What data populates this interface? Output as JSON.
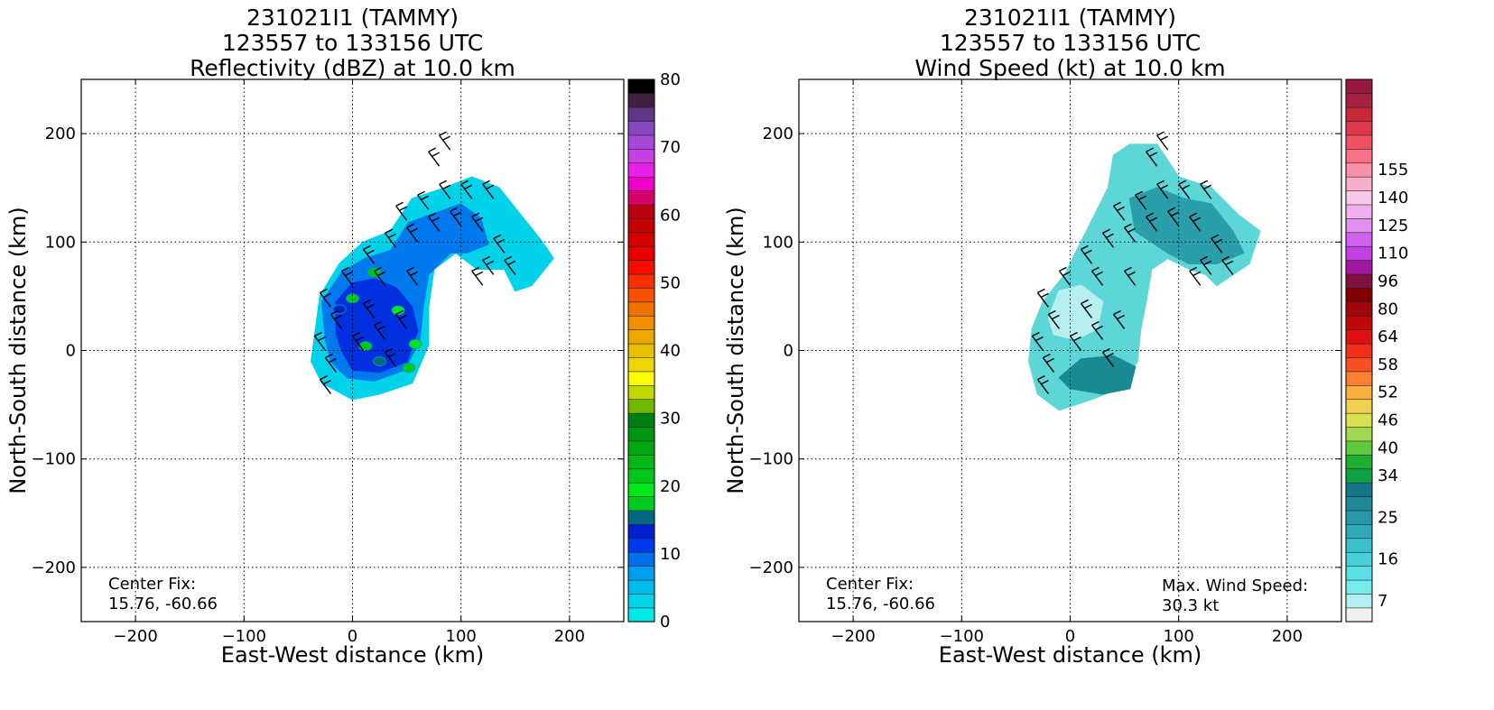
{
  "panels": [
    {
      "title_lines": [
        "231021I1 (TAMMY)",
        "123557 to 133156 UTC",
        "Reflectivity (dBZ) at 10.0 km"
      ],
      "xlabel": "East-West distance (km)",
      "ylabel": "North-South distance (km)",
      "annotation_left": [
        "Center Fix:",
        "15.76, -60.66"
      ],
      "annotation_right": []
    },
    {
      "title_lines": [
        "231021I1 (TAMMY)",
        "123557 to 133156 UTC",
        "Wind Speed (kt) at 10.0 km"
      ],
      "xlabel": "East-West distance (km)",
      "ylabel": "North-South distance (km)",
      "annotation_left": [
        "Center Fix:",
        "15.76, -60.66"
      ],
      "annotation_right": [
        "Max. Wind Speed:",
        "30.3 kt"
      ]
    }
  ],
  "chart_data": [
    {
      "type": "heatmap",
      "title": "231021I1 (TAMMY) 123557 to 133156 UTC Reflectivity (dBZ) at 10.0 km",
      "xlabel": "East-West distance (km)",
      "ylabel": "North-South distance (km)",
      "xlim": [
        -250,
        250
      ],
      "ylim": [
        -250,
        250
      ],
      "xticks": [
        -200,
        -100,
        0,
        100,
        200
      ],
      "yticks": [
        -200,
        -100,
        0,
        100,
        200
      ],
      "grid": true,
      "center_fix": "15.76, -60.66",
      "colorbar": {
        "label": "Reflectivity (dBZ)",
        "min": 0,
        "max": 80,
        "step": 2.5,
        "tick_labels": [
          "0",
          "10",
          "20",
          "30",
          "40",
          "50",
          "60",
          "70",
          "80"
        ],
        "colors": [
          "#00e8e8",
          "#00d4e6",
          "#00bcec",
          "#009ef0",
          "#0070ee",
          "#0038f0",
          "#0020d0",
          "#006a80",
          "#00cc20",
          "#00e81c",
          "#00c81a",
          "#00b816",
          "#00a814",
          "#009612",
          "#008010",
          "#70b800",
          "#c0d800",
          "#fcfc00",
          "#ecd800",
          "#e8c000",
          "#eca800",
          "#f09000",
          "#f07000",
          "#f85200",
          "#f83000",
          "#f80c00",
          "#e80000",
          "#d40000",
          "#c40000",
          "#b80010",
          "#d8006c",
          "#f000c8",
          "#e820e8",
          "#c840e4",
          "#a848d8",
          "#8848c0",
          "#603888",
          "#402040",
          "#000000"
        ]
      },
      "echo_regions": [
        {
          "level": "light",
          "color": "#00d2ea",
          "points": [
            [
              -38,
              -10
            ],
            [
              -30,
              50
            ],
            [
              -12,
              80
            ],
            [
              10,
              100
            ],
            [
              35,
              110
            ],
            [
              55,
              140
            ],
            [
              85,
              150
            ],
            [
              110,
              160
            ],
            [
              135,
              150
            ],
            [
              155,
              125
            ],
            [
              175,
              100
            ],
            [
              185,
              85
            ],
            [
              165,
              60
            ],
            [
              150,
              55
            ],
            [
              140,
              75
            ],
            [
              115,
              75
            ],
            [
              95,
              90
            ],
            [
              75,
              75
            ],
            [
              70,
              40
            ],
            [
              70,
              5
            ],
            [
              55,
              -30
            ],
            [
              25,
              -40
            ],
            [
              0,
              -45
            ],
            [
              -28,
              -30
            ]
          ]
        },
        {
          "level": "moderate",
          "color": "#0078ee",
          "points": [
            [
              -25,
              10
            ],
            [
              -28,
              45
            ],
            [
              -10,
              72
            ],
            [
              12,
              85
            ],
            [
              35,
              92
            ],
            [
              52,
              118
            ],
            [
              80,
              128
            ],
            [
              100,
              135
            ],
            [
              118,
              122
            ],
            [
              125,
              98
            ],
            [
              105,
              90
            ],
            [
              90,
              90
            ],
            [
              70,
              70
            ],
            [
              65,
              40
            ],
            [
              62,
              10
            ],
            [
              48,
              -18
            ],
            [
              20,
              -28
            ],
            [
              -5,
              -25
            ],
            [
              -20,
              -10
            ]
          ]
        },
        {
          "level": "strong",
          "color": "#0030e0",
          "points": [
            [
              -15,
              15
            ],
            [
              -15,
              45
            ],
            [
              0,
              62
            ],
            [
              20,
              66
            ],
            [
              40,
              58
            ],
            [
              55,
              40
            ],
            [
              60,
              18
            ],
            [
              50,
              -10
            ],
            [
              25,
              -20
            ],
            [
              0,
              -18
            ],
            [
              -10,
              0
            ]
          ]
        }
      ],
      "cores": [
        {
          "x": 0,
          "y": 48,
          "dbz": 25
        },
        {
          "x": 20,
          "y": 72,
          "dbz": 27
        },
        {
          "x": 42,
          "y": 37,
          "dbz": 23
        },
        {
          "x": 58,
          "y": 6,
          "dbz": 24
        },
        {
          "x": 12,
          "y": 4,
          "dbz": 26
        },
        {
          "x": 52,
          "y": -16,
          "dbz": 22
        },
        {
          "x": -12,
          "y": 38,
          "dbz": 17
        },
        {
          "x": 25,
          "y": -10,
          "dbz": 18
        }
      ],
      "wind_barbs_km": [
        [
          -20,
          -40
        ],
        [
          -15,
          -20
        ],
        [
          -25,
          0
        ],
        [
          -10,
          20
        ],
        [
          -20,
          40
        ],
        [
          0,
          60
        ],
        [
          20,
          80
        ],
        [
          40,
          95
        ],
        [
          50,
          120
        ],
        [
          70,
          130
        ],
        [
          90,
          140
        ],
        [
          110,
          140
        ],
        [
          130,
          140
        ],
        [
          60,
          100
        ],
        [
          80,
          110
        ],
        [
          100,
          115
        ],
        [
          120,
          110
        ],
        [
          140,
          90
        ],
        [
          130,
          70
        ],
        [
          150,
          70
        ],
        [
          120,
          60
        ],
        [
          10,
          0
        ],
        [
          30,
          10
        ],
        [
          50,
          20
        ],
        [
          40,
          -15
        ],
        [
          20,
          30
        ],
        [
          60,
          60
        ],
        [
          30,
          60
        ],
        [
          80,
          170
        ],
        [
          90,
          185
        ]
      ]
    },
    {
      "type": "heatmap",
      "title": "231021I1 (TAMMY) 123557 to 133156 UTC Wind Speed (kt) at 10.0 km",
      "xlabel": "East-West distance (km)",
      "ylabel": "North-South distance (km)",
      "xlim": [
        -250,
        250
      ],
      "ylim": [
        -250,
        250
      ],
      "xticks": [
        -200,
        -100,
        0,
        100,
        200
      ],
      "yticks": [
        -200,
        -100,
        0,
        100,
        200
      ],
      "grid": true,
      "center_fix": "15.76, -60.66",
      "max_wind_speed_kt": 30.3,
      "colorbar": {
        "label": "Wind Speed (kt)",
        "tick_labels": [
          "7",
          "16",
          "25",
          "34",
          "40",
          "46",
          "52",
          "58",
          "64",
          "80",
          "96",
          "110",
          "125",
          "140",
          "155"
        ],
        "boundaries": [
          4,
          7,
          10,
          13,
          16,
          19,
          22,
          25,
          28,
          31,
          34,
          37,
          40,
          43,
          46,
          49,
          52,
          55,
          58,
          61,
          64,
          72,
          80,
          88,
          96,
          103,
          110,
          118,
          125,
          133,
          140,
          148,
          155,
          163
        ],
        "colors": [
          "#f0f0f0",
          "#b0f0f0",
          "#78ecec",
          "#58e0e4",
          "#48d0d8",
          "#38c0cc",
          "#30aab8",
          "#2898a8",
          "#1e8898",
          "#127888",
          "#10a048",
          "#20b030",
          "#60c840",
          "#a0d850",
          "#d8e050",
          "#f0d050",
          "#f8b040",
          "#f88030",
          "#f85020",
          "#f03018",
          "#e01010",
          "#c00808",
          "#a00808",
          "#800000",
          "#801040",
          "#a018a0",
          "#c040e0",
          "#d060f0",
          "#e090f0",
          "#f0b0f0",
          "#f8c8e8",
          "#f8b0c8",
          "#f890a8",
          "#f87088",
          "#f05060",
          "#e03848",
          "#c82838",
          "#a82040",
          "#981840"
        ]
      },
      "wind_regions": [
        {
          "speed_kt": 18,
          "color": "#5cd6d6",
          "points": [
            [
              -38,
              -10
            ],
            [
              -35,
              20
            ],
            [
              -25,
              45
            ],
            [
              -5,
              70
            ],
            [
              5,
              90
            ],
            [
              20,
              120
            ],
            [
              35,
              150
            ],
            [
              40,
              180
            ],
            [
              55,
              190
            ],
            [
              80,
              190
            ],
            [
              100,
              160
            ],
            [
              130,
              150
            ],
            [
              155,
              125
            ],
            [
              175,
              110
            ],
            [
              165,
              80
            ],
            [
              150,
              70
            ],
            [
              135,
              60
            ],
            [
              125,
              70
            ],
            [
              110,
              75
            ],
            [
              90,
              85
            ],
            [
              75,
              75
            ],
            [
              70,
              45
            ],
            [
              65,
              20
            ],
            [
              62,
              -10
            ],
            [
              45,
              -35
            ],
            [
              20,
              -45
            ],
            [
              -10,
              -55
            ],
            [
              -30,
              -40
            ]
          ]
        },
        {
          "speed_kt": 26,
          "color": "#2a9eaa",
          "points": [
            [
              55,
              140
            ],
            [
              80,
              150
            ],
            [
              105,
              140
            ],
            [
              130,
              135
            ],
            [
              150,
              110
            ],
            [
              160,
              90
            ],
            [
              135,
              80
            ],
            [
              110,
              80
            ],
            [
              90,
              90
            ],
            [
              75,
              100
            ],
            [
              60,
              110
            ]
          ]
        },
        {
          "speed_kt": 12,
          "color": "#b8eeee",
          "points": [
            [
              -20,
              30
            ],
            [
              -10,
              55
            ],
            [
              10,
              60
            ],
            [
              30,
              45
            ],
            [
              25,
              20
            ],
            [
              5,
              10
            ],
            [
              -15,
              15
            ]
          ]
        },
        {
          "speed_kt": 28,
          "color": "#178a94",
          "points": [
            [
              -10,
              -25
            ],
            [
              10,
              -8
            ],
            [
              40,
              -5
            ],
            [
              60,
              -15
            ],
            [
              55,
              -35
            ],
            [
              30,
              -40
            ],
            [
              0,
              -35
            ]
          ]
        }
      ]
    }
  ]
}
